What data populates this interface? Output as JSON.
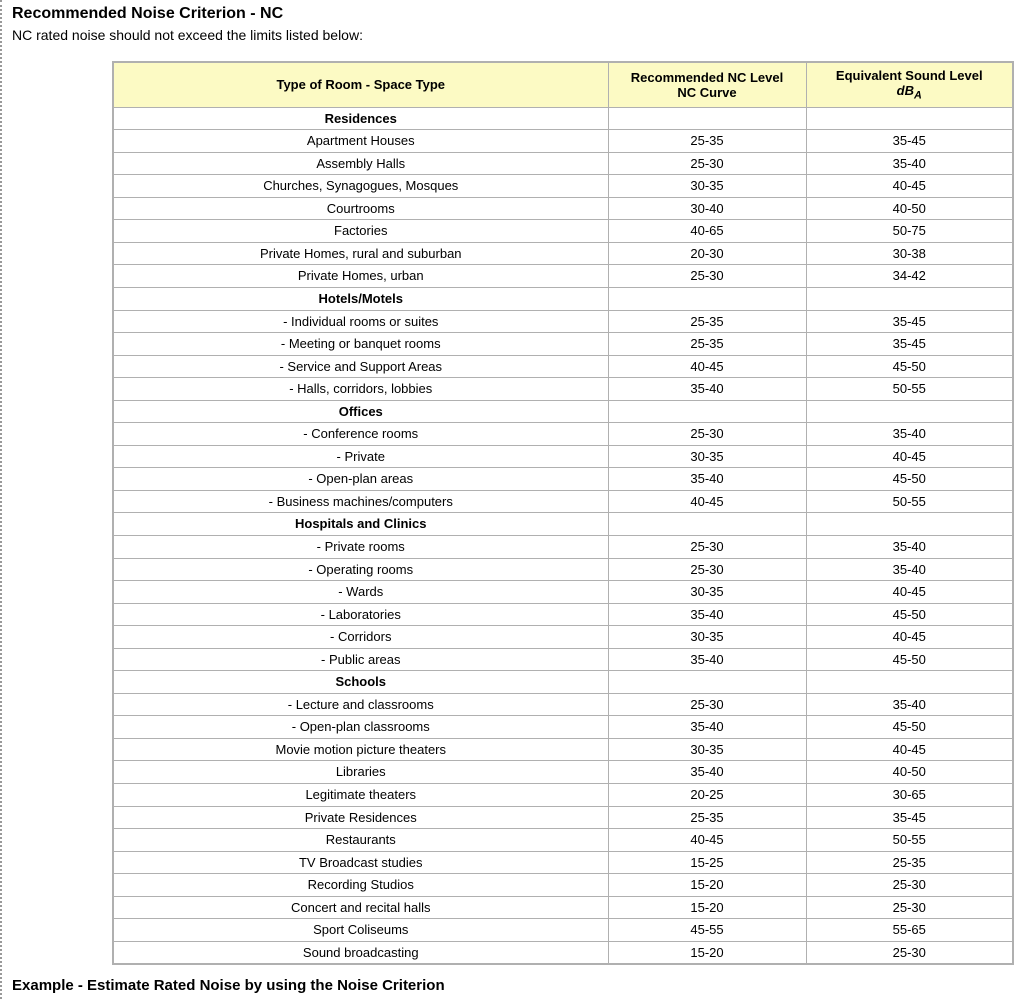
{
  "title": "Recommended Noise Criterion - NC",
  "subtitle": "NC rated noise should not exceed the limits listed below:",
  "footer_heading": "Example - Estimate Rated Noise by using the Noise Criterion",
  "table": {
    "columns": [
      {
        "line1": "Type of Room - Space Type",
        "line2": ""
      },
      {
        "line1": "Recommended NC Level",
        "line2": "NC Curve"
      },
      {
        "line1": "Equivalent Sound Level",
        "line2_html": "<i>dB<sub>A</sub></i>"
      }
    ],
    "header_bg": "#fcfac4",
    "border_color": "#b0b0b0",
    "rows": [
      {
        "type": "section",
        "label": "Residences"
      },
      {
        "type": "data",
        "room": "Apartment Houses",
        "nc": "25-35",
        "db": "35-45"
      },
      {
        "type": "data",
        "room": "Assembly Halls",
        "nc": "25-30",
        "db": "35-40"
      },
      {
        "type": "data",
        "room": "Churches, Synagogues, Mosques",
        "nc": "30-35",
        "db": "40-45"
      },
      {
        "type": "data",
        "room": "Courtrooms",
        "nc": "30-40",
        "db": "40-50"
      },
      {
        "type": "data",
        "room": "Factories",
        "nc": "40-65",
        "db": "50-75"
      },
      {
        "type": "data",
        "room": "Private Homes, rural and suburban",
        "nc": "20-30",
        "db": "30-38"
      },
      {
        "type": "data",
        "room": "Private Homes, urban",
        "nc": "25-30",
        "db": "34-42"
      },
      {
        "type": "section",
        "label": "Hotels/Motels"
      },
      {
        "type": "data",
        "room": "- Individual rooms or suites",
        "nc": "25-35",
        "db": "35-45"
      },
      {
        "type": "data",
        "room": "- Meeting or banquet rooms",
        "nc": "25-35",
        "db": "35-45"
      },
      {
        "type": "data",
        "room": "- Service and Support Areas",
        "nc": "40-45",
        "db": "45-50"
      },
      {
        "type": "data",
        "room": "- Halls, corridors, lobbies",
        "nc": "35-40",
        "db": "50-55"
      },
      {
        "type": "section",
        "label": "Offices"
      },
      {
        "type": "data",
        "room": "- Conference rooms",
        "nc": "25-30",
        "db": "35-40"
      },
      {
        "type": "data",
        "room": "- Private",
        "nc": "30-35",
        "db": "40-45"
      },
      {
        "type": "data",
        "room": "- Open-plan areas",
        "nc": "35-40",
        "db": "45-50"
      },
      {
        "type": "data",
        "room": "- Business machines/computers",
        "nc": "40-45",
        "db": "50-55"
      },
      {
        "type": "section",
        "label": "Hospitals and Clinics"
      },
      {
        "type": "data",
        "room": "- Private rooms",
        "nc": "25-30",
        "db": "35-40"
      },
      {
        "type": "data",
        "room": "- Operating rooms",
        "nc": "25-30",
        "db": "35-40"
      },
      {
        "type": "data",
        "room": "- Wards",
        "nc": "30-35",
        "db": "40-45"
      },
      {
        "type": "data",
        "room": "- Laboratories",
        "nc": "35-40",
        "db": "45-50"
      },
      {
        "type": "data",
        "room": "- Corridors",
        "nc": "30-35",
        "db": "40-45"
      },
      {
        "type": "data",
        "room": "- Public areas",
        "nc": "35-40",
        "db": "45-50"
      },
      {
        "type": "section",
        "label": "Schools"
      },
      {
        "type": "data",
        "room": "- Lecture and classrooms",
        "nc": "25-30",
        "db": "35-40"
      },
      {
        "type": "data",
        "room": "- Open-plan classrooms",
        "nc": "35-40",
        "db": "45-50"
      },
      {
        "type": "data",
        "room": "Movie motion picture theaters",
        "nc": "30-35",
        "db": "40-45"
      },
      {
        "type": "data",
        "room": "Libraries",
        "nc": "35-40",
        "db": "40-50"
      },
      {
        "type": "data",
        "room": "Legitimate theaters",
        "nc": "20-25",
        "db": "30-65"
      },
      {
        "type": "data",
        "room": "Private Residences",
        "nc": "25-35",
        "db": "35-45"
      },
      {
        "type": "data",
        "room": "Restaurants",
        "nc": "40-45",
        "db": "50-55"
      },
      {
        "type": "data",
        "room": "TV Broadcast studies",
        "nc": "15-25",
        "db": "25-35"
      },
      {
        "type": "data",
        "room": "Recording Studios",
        "nc": "15-20",
        "db": "25-30"
      },
      {
        "type": "data",
        "room": "Concert and recital halls",
        "nc": "15-20",
        "db": "25-30"
      },
      {
        "type": "data",
        "room": "Sport Coliseums",
        "nc": "45-55",
        "db": "55-65"
      },
      {
        "type": "data",
        "room": "Sound broadcasting",
        "nc": "15-20",
        "db": "25-30"
      }
    ]
  }
}
